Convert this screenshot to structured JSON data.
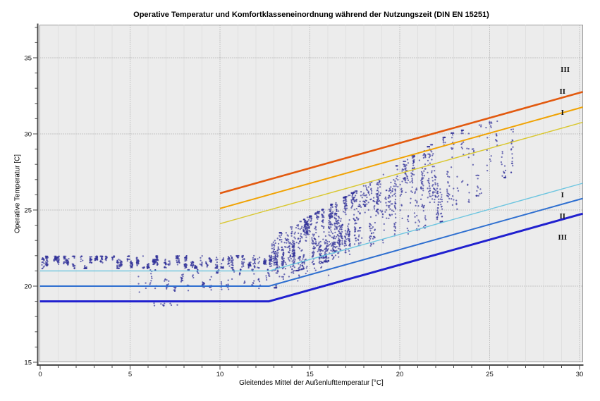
{
  "chart_data": {
    "type": "scatter",
    "title": "Operative Temperatur und Komfortklasseneinordnung während der Nutzungszeit (DIN EN 15251)",
    "xlabel": "Gleitendes Mittel der Außenlufttemperatur [°C]",
    "ylabel": "Operative Temperatur [C]",
    "xlim": [
      0,
      30
    ],
    "ylim": [
      15,
      37
    ],
    "x_ticks": [
      0,
      5,
      10,
      15,
      20,
      25,
      30
    ],
    "y_ticks": [
      15,
      20,
      25,
      30,
      35
    ],
    "grid": "dotted majors, faint minor verticals",
    "legend_position": "inline right labels",
    "comfort_lines": [
      {
        "id": "upper-class-III",
        "class": "III",
        "color": "#e2590e",
        "width": 2.6,
        "points": [
          [
            10,
            26.1
          ],
          [
            30,
            32.7
          ]
        ]
      },
      {
        "id": "upper-class-II",
        "class": "II",
        "color": "#f0a202",
        "width": 2.0,
        "points": [
          [
            10,
            25.1
          ],
          [
            30,
            31.7
          ]
        ]
      },
      {
        "id": "upper-class-I",
        "class": "I",
        "color": "#d9c72f",
        "width": 1.4,
        "points": [
          [
            10,
            24.1
          ],
          [
            30,
            30.7
          ]
        ]
      },
      {
        "id": "lower-class-I",
        "class": "I",
        "color": "#6cc5e0",
        "width": 1.4,
        "points": [
          [
            0,
            21
          ],
          [
            12.73,
            21
          ],
          [
            30,
            26.7
          ]
        ]
      },
      {
        "id": "lower-class-II",
        "class": "II",
        "color": "#2e6fd0",
        "width": 2.0,
        "points": [
          [
            0,
            20
          ],
          [
            12.73,
            20
          ],
          [
            30,
            25.7
          ]
        ]
      },
      {
        "id": "lower-class-III",
        "class": "III",
        "color": "#2020cf",
        "width": 3.0,
        "points": [
          [
            0,
            19
          ],
          [
            12.73,
            19
          ],
          [
            30,
            24.7
          ]
        ]
      }
    ],
    "class_labels": [
      {
        "text": "III",
        "x": 29.2,
        "y": 34.21
      },
      {
        "text": "II",
        "x": 29.05,
        "y": 32.78
      },
      {
        "text": "I",
        "x": 29.05,
        "y": 31.39
      },
      {
        "text": "I",
        "x": 29.05,
        "y": 25.97
      },
      {
        "text": "II",
        "x": 29.05,
        "y": 24.58
      },
      {
        "text": "III",
        "x": 29.05,
        "y": 23.19
      }
    ],
    "scatter": {
      "point_color": "#32329a",
      "point_opacity": 0.68,
      "point_radius": 1.15,
      "seed": 42,
      "bands": [
        {
          "name": "winter-band",
          "x0": 0,
          "x1": 12.9,
          "low0": 21.15,
          "high0": 21.95,
          "low1": 21.2,
          "high1": 22.0,
          "streaks": 44,
          "pts_min": 6,
          "pts_max": 30
        },
        {
          "name": "winter-low",
          "x0": 5.3,
          "x1": 13.3,
          "low0": 19.6,
          "high0": 21.05,
          "low1": 19.9,
          "high1": 21.1,
          "streaks": 24,
          "pts_min": 2,
          "pts_max": 12
        },
        {
          "name": "winter-outliers",
          "x0": 6.3,
          "x1": 7.7,
          "low0": 18.45,
          "high0": 18.95,
          "low1": 18.5,
          "high1": 19.0,
          "streaks": 5,
          "pts_min": 1,
          "pts_max": 3
        },
        {
          "name": "shoulder-sparse",
          "x0": 13.2,
          "x1": 16.2,
          "low0": 19.9,
          "high0": 21.0,
          "low1": 20.6,
          "high1": 21.7,
          "streaks": 8,
          "pts_min": 1,
          "pts_max": 4
        },
        {
          "name": "summer-cloud-a",
          "x0": 12.9,
          "x1": 17.5,
          "low0": 20.5,
          "high0": 23.2,
          "low1": 22.2,
          "high1": 26.2,
          "streaks": 42,
          "pts_min": 8,
          "pts_max": 42
        },
        {
          "name": "summer-cloud-b",
          "x0": 17.5,
          "x1": 22.5,
          "low0": 22.2,
          "high0": 26.2,
          "low1": 24.3,
          "high1": 29.8,
          "streaks": 30,
          "pts_min": 6,
          "pts_max": 34
        },
        {
          "name": "summer-cloud-c",
          "x0": 22.5,
          "x1": 26.3,
          "low0": 24.5,
          "high0": 29.9,
          "low1": 27.5,
          "high1": 31.2,
          "streaks": 14,
          "pts_min": 3,
          "pts_max": 22
        }
      ]
    }
  }
}
